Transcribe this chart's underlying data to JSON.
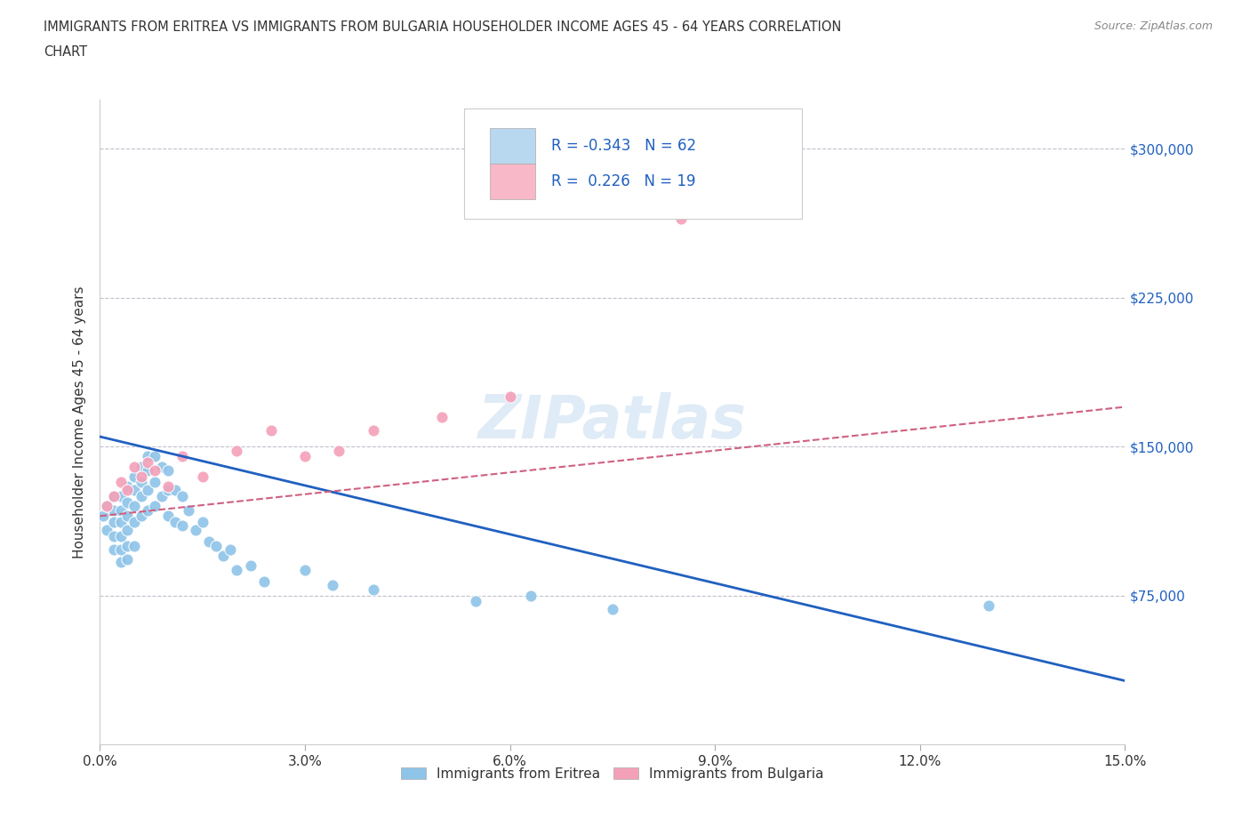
{
  "title_line1": "IMMIGRANTS FROM ERITREA VS IMMIGRANTS FROM BULGARIA HOUSEHOLDER INCOME AGES 45 - 64 YEARS CORRELATION",
  "title_line2": "CHART",
  "source_text": "Source: ZipAtlas.com",
  "ylabel": "Householder Income Ages 45 - 64 years",
  "watermark": "ZIPatlas",
  "eritrea_r": "-0.343",
  "eritrea_n": "62",
  "bulgaria_r": "0.226",
  "bulgaria_n": "19",
  "eritrea_color": "#8ec4e8",
  "bulgaria_color": "#f4a0b8",
  "eritrea_line_color": "#2060c0",
  "bulgaria_line_color": "#d06080",
  "grid_color": "#c0c0cc",
  "background_color": "#ffffff",
  "xlim": [
    0.0,
    0.15
  ],
  "ylim": [
    0,
    325000
  ],
  "yticks": [
    0,
    75000,
    150000,
    225000,
    300000
  ],
  "xticks": [
    0.0,
    0.03,
    0.06,
    0.09,
    0.12,
    0.15
  ],
  "xtick_labels": [
    "0.0%",
    "3.0%",
    "6.0%",
    "9.0%",
    "12.0%",
    "15.0%"
  ],
  "eritrea_x": [
    0.0005,
    0.001,
    0.001,
    0.002,
    0.002,
    0.002,
    0.002,
    0.002,
    0.003,
    0.003,
    0.003,
    0.003,
    0.003,
    0.003,
    0.004,
    0.004,
    0.004,
    0.004,
    0.004,
    0.004,
    0.005,
    0.005,
    0.005,
    0.005,
    0.005,
    0.006,
    0.006,
    0.006,
    0.006,
    0.007,
    0.007,
    0.007,
    0.007,
    0.008,
    0.008,
    0.008,
    0.009,
    0.009,
    0.01,
    0.01,
    0.01,
    0.011,
    0.011,
    0.012,
    0.012,
    0.013,
    0.014,
    0.015,
    0.016,
    0.017,
    0.018,
    0.019,
    0.02,
    0.022,
    0.024,
    0.03,
    0.034,
    0.04,
    0.055,
    0.063,
    0.075,
    0.13
  ],
  "eritrea_y": [
    115000,
    120000,
    108000,
    125000,
    118000,
    112000,
    105000,
    98000,
    125000,
    118000,
    112000,
    105000,
    98000,
    92000,
    130000,
    122000,
    115000,
    108000,
    100000,
    93000,
    135000,
    128000,
    120000,
    112000,
    100000,
    140000,
    132000,
    125000,
    115000,
    145000,
    138000,
    128000,
    118000,
    145000,
    132000,
    120000,
    140000,
    125000,
    138000,
    128000,
    115000,
    128000,
    112000,
    125000,
    110000,
    118000,
    108000,
    112000,
    102000,
    100000,
    95000,
    98000,
    88000,
    90000,
    82000,
    88000,
    80000,
    78000,
    72000,
    75000,
    68000,
    70000
  ],
  "bulgaria_x": [
    0.001,
    0.002,
    0.003,
    0.004,
    0.005,
    0.006,
    0.007,
    0.008,
    0.01,
    0.012,
    0.015,
    0.02,
    0.025,
    0.03,
    0.035,
    0.04,
    0.05,
    0.06,
    0.085
  ],
  "bulgaria_y": [
    120000,
    125000,
    132000,
    128000,
    140000,
    135000,
    142000,
    138000,
    130000,
    145000,
    135000,
    148000,
    158000,
    145000,
    148000,
    158000,
    165000,
    175000,
    265000
  ],
  "eritrea_trend_x": [
    0.0,
    0.15
  ],
  "eritrea_trend_y": [
    155000,
    32000
  ],
  "bulgaria_trend_x": [
    0.0,
    0.15
  ],
  "bulgaria_trend_y": [
    115000,
    170000
  ],
  "legend_box_color": "#b8d8f0",
  "legend_box2_color": "#f8b8c8",
  "legend_text_color": "#2060c0"
}
